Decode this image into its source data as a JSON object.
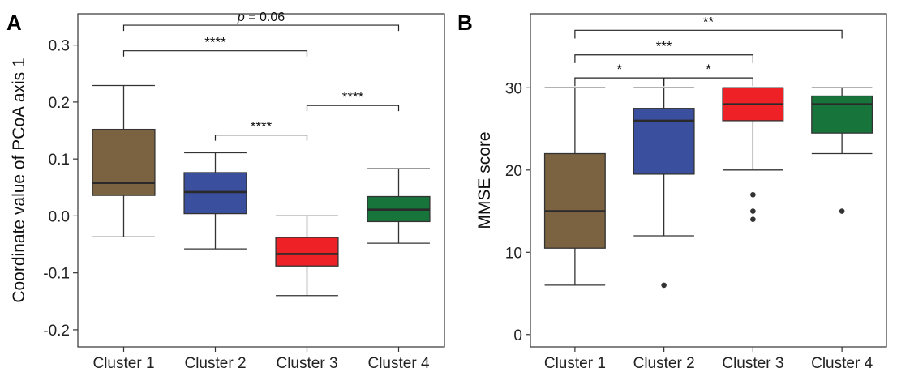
{
  "chart_data": [
    {
      "panel": "A",
      "type": "box",
      "ylabel": "Coordinate value of PCoA axis 1",
      "ylim": [
        -0.23,
        0.355
      ],
      "yticks": [
        -0.2,
        -0.1,
        0.0,
        0.1,
        0.2,
        0.3
      ],
      "ytick_labels": [
        "-0.2",
        "-0.1",
        "0.0",
        "0.1",
        "0.2",
        "0.3"
      ],
      "categories": [
        "Cluster 1",
        "Cluster 2",
        "Cluster 3",
        "Cluster 4"
      ],
      "boxes": [
        {
          "name": "Cluster 1",
          "color": "#7b6240",
          "whisker_low": -0.037,
          "q1": 0.036,
          "median": 0.058,
          "q3": 0.152,
          "whisker_high": 0.229,
          "outliers": []
        },
        {
          "name": "Cluster 2",
          "color": "#3a4f9e",
          "whisker_low": -0.058,
          "q1": 0.004,
          "median": 0.042,
          "q3": 0.076,
          "whisker_high": 0.111,
          "outliers": []
        },
        {
          "name": "Cluster 3",
          "color": "#ee2127",
          "whisker_low": -0.14,
          "q1": -0.088,
          "median": -0.067,
          "q3": -0.038,
          "whisker_high": 0.0,
          "outliers": []
        },
        {
          "name": "Cluster 4",
          "color": "#17743b",
          "whisker_low": -0.048,
          "q1": -0.01,
          "median": 0.011,
          "q3": 0.034,
          "whisker_high": 0.083,
          "outliers": []
        }
      ],
      "significance": [
        {
          "from": 0,
          "to": 3,
          "y": 0.335,
          "drop": 0.01,
          "label_prefix": "p",
          "label": " = 0.06"
        },
        {
          "from": 0,
          "to": 2,
          "y": 0.29,
          "drop": 0.01,
          "label": "****"
        },
        {
          "from": 2,
          "to": 3,
          "y": 0.194,
          "drop": 0.01,
          "label": "****"
        },
        {
          "from": 1,
          "to": 2,
          "y": 0.142,
          "drop": 0.01,
          "label": "****"
        }
      ]
    },
    {
      "panel": "B",
      "type": "box",
      "ylabel": "MMSE score",
      "ylim": [
        -1.5,
        39
      ],
      "yticks": [
        0,
        10,
        20,
        30
      ],
      "ytick_labels": [
        "0",
        "10",
        "20",
        "30"
      ],
      "categories": [
        "Cluster 1",
        "Cluster 2",
        "Cluster 3",
        "Cluster 4"
      ],
      "boxes": [
        {
          "name": "Cluster 1",
          "color": "#7b6240",
          "whisker_low": 6,
          "q1": 10.5,
          "median": 15,
          "q3": 22,
          "whisker_high": 30,
          "outliers": []
        },
        {
          "name": "Cluster 2",
          "color": "#3a4f9e",
          "whisker_low": 12,
          "q1": 19.5,
          "median": 26,
          "q3": 27.5,
          "whisker_high": 30,
          "outliers": [
            6
          ]
        },
        {
          "name": "Cluster 3",
          "color": "#ee2127",
          "whisker_low": 20,
          "q1": 26,
          "median": 28,
          "q3": 30,
          "whisker_high": 30,
          "outliers": [
            17,
            15,
            14
          ]
        },
        {
          "name": "Cluster 4",
          "color": "#17743b",
          "whisker_low": 22,
          "q1": 24.5,
          "median": 28,
          "q3": 29,
          "whisker_high": 30,
          "outliers": [
            15
          ]
        }
      ],
      "significance": [
        {
          "from": 0,
          "to": 3,
          "y": 37,
          "drop": 1.0,
          "label": "**"
        },
        {
          "from": 0,
          "to": 2,
          "y": 34,
          "drop": 1.0,
          "label": "***"
        },
        {
          "from": 0,
          "to": 1,
          "y": 31.2,
          "drop": 1.0,
          "label": "*"
        },
        {
          "from": 1,
          "to": 2,
          "y": 31.2,
          "drop": 1.0,
          "label": "*"
        }
      ]
    }
  ]
}
